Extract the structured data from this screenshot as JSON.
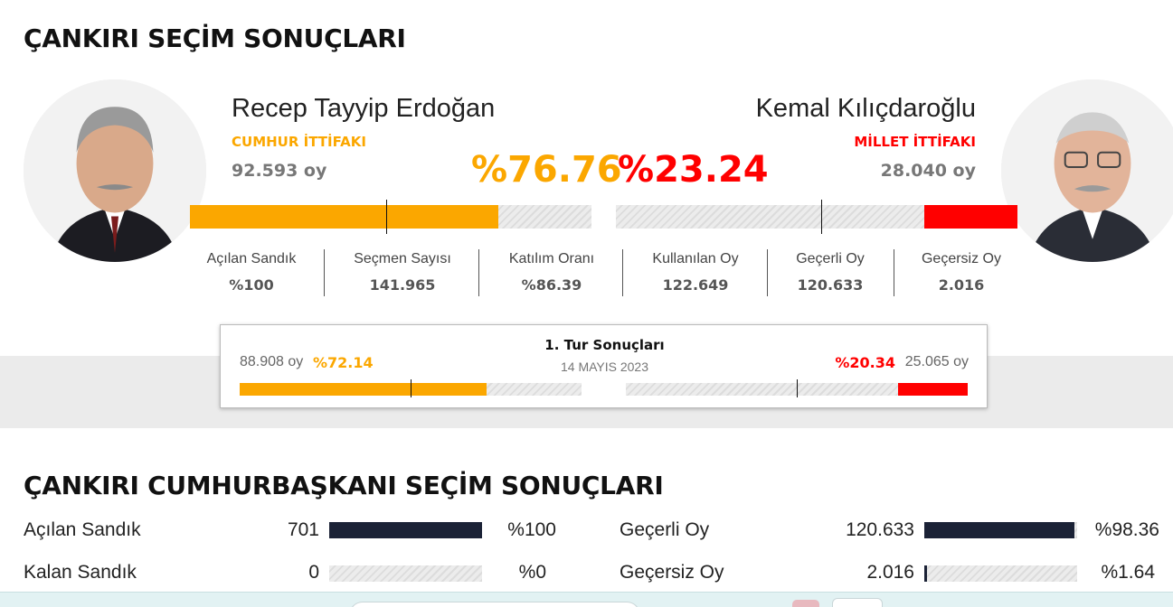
{
  "page_title": "ÇANKIRI SEÇİM SONUÇLARI",
  "colors": {
    "orange": "#fba700",
    "red": "#ff0000",
    "navy": "#1b2236"
  },
  "candidates": [
    {
      "name": "Recep Tayyip Erdoğan",
      "alliance": "CUMHUR İTTİFAKI",
      "votes": "92.593 oy",
      "pct_label": "%76.76",
      "pct": 76.76,
      "photo_icon": "portrait-icon"
    },
    {
      "name": "Kemal Kılıçdaroğlu",
      "alliance": "MİLLET İTTİFAKI",
      "votes": "28.040 oy",
      "pct_label": "%23.24",
      "pct": 23.24,
      "photo_icon": "portrait-icon"
    }
  ],
  "stats": [
    {
      "label": "Açılan Sandık",
      "value": "%100"
    },
    {
      "label": "Seçmen Sayısı",
      "value": "141.965"
    },
    {
      "label": "Katılım Oranı",
      "value": "%86.39"
    },
    {
      "label": "Kullanılan Oy",
      "value": "122.649"
    },
    {
      "label": "Geçerli Oy",
      "value": "120.633"
    },
    {
      "label": "Geçersiz Oy",
      "value": "2.016"
    }
  ],
  "first_round": {
    "title": "1. Tur Sonuçları",
    "date": "14 MAYIS 2023",
    "left": {
      "votes": "88.908 oy",
      "pct_label": "%72.14",
      "pct": 72.14
    },
    "right": {
      "votes": "25.065 oy",
      "pct_label": "%20.34",
      "pct": 20.34
    }
  },
  "section_title": "ÇANKIRI CUMHURBAŞKANI SEÇİM SONUÇLARI",
  "table": {
    "left": [
      {
        "label": "Açılan Sandık",
        "value": "701",
        "pct_label": "%100",
        "fraction": 1.0
      },
      {
        "label": "Kalan Sandık",
        "value": "0",
        "pct_label": "%0",
        "fraction": 0.0
      }
    ],
    "right": [
      {
        "label": "Geçerli Oy",
        "value": "120.633",
        "pct_label": "%98.36",
        "fraction": 0.9836
      },
      {
        "label": "Geçersiz Oy",
        "value": "2.016",
        "pct_label": "%1.64",
        "fraction": 0.0164
      }
    ]
  }
}
